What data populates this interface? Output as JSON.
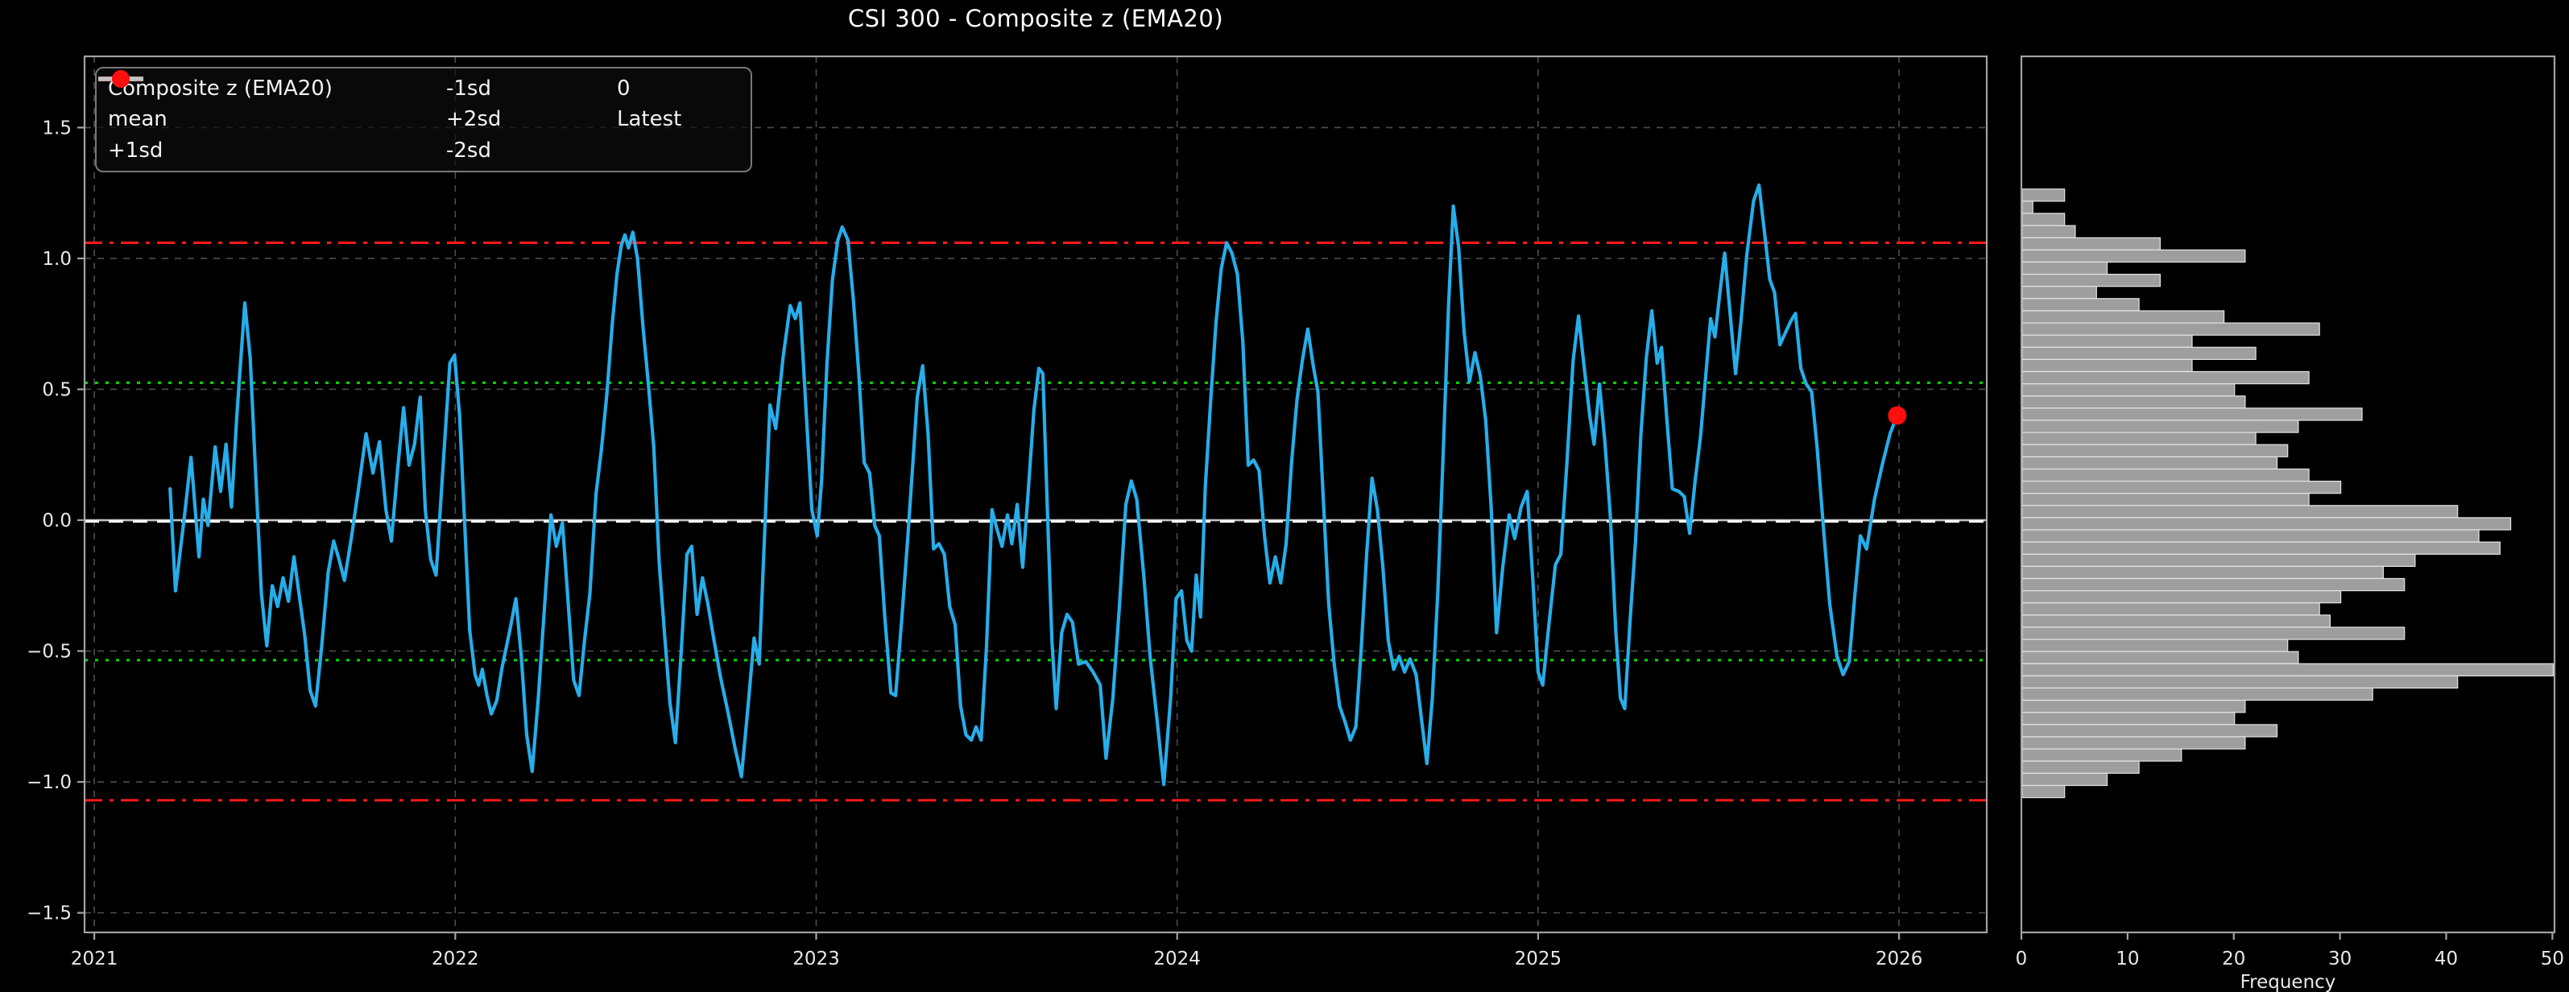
{
  "title": "CSI 300 - Composite z (EMA20)",
  "colors": {
    "background": "#000000",
    "series_line": "#27ADEA",
    "mean_line": "#ffffff",
    "sd1_line": "#00DD00",
    "sd2_line": "#FF1A1A",
    "zero_line": "#C3C3C3",
    "latest_dot": "#FF0E0E",
    "grid": "#4d4d4d",
    "spine": "#A3A3A3",
    "tick_text": "#E8E8E8",
    "hist_fill": "#9E9E9E",
    "hist_edge": "#E4E4E4"
  },
  "legend": {
    "entries": [
      {
        "label": "Composite z (EMA20)",
        "style": "solid",
        "color": "#27ADEA",
        "glyph": "line"
      },
      {
        "label": "mean",
        "style": "dashed",
        "color": "#ffffff",
        "glyph": "line"
      },
      {
        "label": "+1sd",
        "style": "dotted",
        "color": "#00DD00",
        "glyph": "line"
      },
      {
        "label": "-1sd",
        "style": "dotted",
        "color": "#00DD00",
        "glyph": "line"
      },
      {
        "label": "+2sd",
        "style": "dashdot",
        "color": "#FF1A1A",
        "glyph": "line"
      },
      {
        "label": "-2sd",
        "style": "dashdot",
        "color": "#FF1A1A",
        "glyph": "line"
      },
      {
        "label": "0",
        "style": "solid",
        "color": "#C3C3C3",
        "glyph": "line"
      },
      {
        "label": "Latest",
        "style": "solid",
        "color": "#FF0E0E",
        "glyph": "dot"
      }
    ]
  },
  "chart_data": [
    {
      "type": "line",
      "title": "CSI 300 - Composite z (EMA20)",
      "xlabel": "",
      "ylabel": "",
      "grid": true,
      "xlim": [
        2020.973,
        2026.243
      ],
      "ylim": [
        -1.575,
        1.772
      ],
      "x_tick_values": [
        2021,
        2022,
        2023,
        2024,
        2025,
        2026
      ],
      "x_tick_labels": [
        "2021",
        "2022",
        "2023",
        "2024",
        "2025",
        "2026"
      ],
      "y_tick_values": [
        1.5,
        1.0,
        0.5,
        0.0,
        -0.5,
        -1.0,
        -1.5
      ],
      "y_tick_labels": [
        "1.5",
        "1.0",
        "0.5",
        "0.0",
        "−0.5",
        "−1.0",
        "−1.5"
      ],
      "ref_lines": [
        {
          "name": "+2sd",
          "value": 1.06,
          "color": "#FF1A1A",
          "style": "dashdot"
        },
        {
          "name": "-2sd",
          "value": -1.07,
          "color": "#FF1A1A",
          "style": "dashdot"
        },
        {
          "name": "+1sd",
          "value": 0.525,
          "color": "#00DD00",
          "style": "dotted"
        },
        {
          "name": "-1sd",
          "value": -0.535,
          "color": "#00DD00",
          "style": "dotted"
        },
        {
          "name": "0",
          "value": 0.0,
          "color": "#C3C3C3",
          "style": "solid"
        },
        {
          "name": "mean",
          "value": -0.005,
          "color": "#ffffff",
          "style": "dashed"
        }
      ],
      "latest": {
        "x": 2025.995,
        "y": 0.4,
        "label": "Latest"
      },
      "series": [
        {
          "name": "Composite z (EMA20)",
          "color": "#27ADEA",
          "x": [
            2021.21,
            2021.225,
            2021.25,
            2021.268,
            2021.29,
            2021.302,
            2021.315,
            2021.335,
            2021.35,
            2021.365,
            2021.38,
            2021.395,
            2021.417,
            2021.432,
            2021.447,
            2021.463,
            2021.478,
            2021.493,
            2021.508,
            2021.523,
            2021.538,
            2021.553,
            2021.568,
            2021.583,
            2021.598,
            2021.613,
            2021.63,
            2021.648,
            2021.663,
            2021.678,
            2021.693,
            2021.712,
            2021.733,
            2021.753,
            2021.772,
            2021.79,
            2021.808,
            2021.823,
            2021.84,
            2021.857,
            2021.872,
            2021.887,
            2021.903,
            2021.917,
            2021.932,
            2021.947,
            2021.965,
            2021.985,
            2021.998,
            2022.012,
            2022.025,
            2022.04,
            2022.055,
            2022.065,
            2022.075,
            2022.088,
            2022.1,
            2022.115,
            2022.13,
            2022.15,
            2022.168,
            2022.183,
            2022.198,
            2022.213,
            2022.23,
            2022.25,
            2022.265,
            2022.28,
            2022.297,
            2022.313,
            2022.328,
            2022.343,
            2022.358,
            2022.373,
            2022.39,
            2022.405,
            2022.42,
            2022.435,
            2022.448,
            2022.46,
            2022.47,
            2022.48,
            2022.492,
            2022.505,
            2022.52,
            2022.535,
            2022.55,
            2022.565,
            2022.58,
            2022.595,
            2022.61,
            2022.627,
            2022.642,
            2022.655,
            2022.67,
            2022.685,
            2022.7,
            2022.717,
            2022.735,
            2022.755,
            2022.775,
            2022.793,
            2022.81,
            2022.828,
            2022.842,
            2022.858,
            2022.872,
            2022.888,
            2022.908,
            2022.928,
            2022.942,
            2022.955,
            2022.972,
            2022.988,
            2023.003,
            2023.015,
            2023.03,
            2023.045,
            2023.06,
            2023.072,
            2023.088,
            2023.103,
            2023.118,
            2023.133,
            2023.148,
            2023.162,
            2023.175,
            2023.19,
            2023.207,
            2023.22,
            2023.237,
            2023.253,
            2023.268,
            2023.28,
            2023.295,
            2023.31,
            2023.325,
            2023.34,
            2023.355,
            2023.37,
            2023.385,
            2023.4,
            2023.415,
            2023.43,
            2023.443,
            2023.457,
            2023.472,
            2023.487,
            2023.5,
            2023.515,
            2023.53,
            2023.542,
            2023.557,
            2023.572,
            2023.588,
            2023.603,
            2023.617,
            2023.628,
            2023.642,
            2023.653,
            2023.665,
            2023.68,
            2023.695,
            2023.71,
            2023.727,
            2023.747,
            2023.767,
            2023.787,
            2023.803,
            2023.822,
            2023.84,
            2023.858,
            2023.873,
            2023.888,
            2023.908,
            2023.925,
            2023.945,
            2023.963,
            2023.982,
            2023.997,
            2024.012,
            2024.027,
            2024.04,
            2024.053,
            2024.065,
            2024.078,
            2024.093,
            2024.108,
            2024.122,
            2024.137,
            2024.152,
            2024.167,
            2024.182,
            2024.197,
            2024.212,
            2024.227,
            2024.242,
            2024.257,
            2024.272,
            2024.287,
            2024.302,
            2024.317,
            2024.332,
            2024.347,
            2024.362,
            2024.377,
            2024.39,
            2024.405,
            2024.42,
            2024.435,
            2024.45,
            2024.465,
            2024.48,
            2024.495,
            2024.51,
            2024.525,
            2024.54,
            2024.555,
            2024.57,
            2024.585,
            2024.6,
            2024.615,
            2024.63,
            2024.645,
            2024.662,
            2024.677,
            2024.692,
            2024.707,
            2024.722,
            2024.737,
            2024.752,
            2024.765,
            2024.78,
            2024.795,
            2024.81,
            2024.825,
            2024.84,
            2024.855,
            2024.87,
            2024.885,
            2024.902,
            2024.92,
            2024.935,
            2024.953,
            2024.97,
            2024.985,
            2025.0,
            2025.013,
            2025.03,
            2025.048,
            2025.063,
            2025.08,
            2025.097,
            2025.112,
            2025.128,
            2025.143,
            2025.155,
            2025.17,
            2025.185,
            2025.2,
            2025.215,
            2025.228,
            2025.24,
            2025.255,
            2025.27,
            2025.285,
            2025.3,
            2025.315,
            2025.33,
            2025.342,
            2025.357,
            2025.372,
            2025.39,
            2025.405,
            2025.42,
            2025.435,
            2025.45,
            2025.465,
            2025.478,
            2025.49,
            2025.503,
            2025.517,
            2025.532,
            2025.547,
            2025.562,
            2025.578,
            2025.597,
            2025.612,
            2025.628,
            2025.642,
            2025.655,
            2025.67,
            2025.683,
            2025.7,
            2025.713,
            2025.728,
            2025.743,
            2025.758,
            2025.773,
            2025.79,
            2025.808,
            2025.828,
            2025.845,
            2025.862,
            2025.878,
            2025.893,
            2025.91,
            2025.932,
            2025.955,
            2025.975,
            2025.995
          ],
          "y": [
            0.12,
            -0.27,
            0.02,
            0.24,
            -0.14,
            0.08,
            -0.02,
            0.28,
            0.11,
            0.29,
            0.05,
            0.4,
            0.83,
            0.62,
            0.18,
            -0.28,
            -0.48,
            -0.25,
            -0.33,
            -0.22,
            -0.31,
            -0.14,
            -0.29,
            -0.44,
            -0.65,
            -0.71,
            -0.48,
            -0.2,
            -0.08,
            -0.15,
            -0.23,
            -0.07,
            0.13,
            0.33,
            0.18,
            0.3,
            0.04,
            -0.08,
            0.19,
            0.43,
            0.21,
            0.29,
            0.47,
            0.04,
            -0.15,
            -0.21,
            0.18,
            0.6,
            0.63,
            0.4,
            0.02,
            -0.42,
            -0.59,
            -0.63,
            -0.57,
            -0.67,
            -0.74,
            -0.69,
            -0.56,
            -0.43,
            -0.3,
            -0.52,
            -0.82,
            -0.96,
            -0.68,
            -0.28,
            0.02,
            -0.1,
            -0.01,
            -0.32,
            -0.61,
            -0.67,
            -0.46,
            -0.28,
            0.1,
            0.27,
            0.48,
            0.75,
            0.94,
            1.05,
            1.09,
            1.04,
            1.1,
            1.0,
            0.74,
            0.52,
            0.28,
            -0.16,
            -0.44,
            -0.7,
            -0.85,
            -0.48,
            -0.13,
            -0.1,
            -0.36,
            -0.22,
            -0.32,
            -0.46,
            -0.6,
            -0.73,
            -0.87,
            -0.98,
            -0.73,
            -0.45,
            -0.55,
            -0.02,
            0.44,
            0.35,
            0.62,
            0.82,
            0.77,
            0.83,
            0.42,
            0.04,
            -0.06,
            0.15,
            0.6,
            0.92,
            1.07,
            1.12,
            1.07,
            0.84,
            0.56,
            0.22,
            0.18,
            -0.02,
            -0.06,
            -0.37,
            -0.66,
            -0.67,
            -0.38,
            -0.08,
            0.22,
            0.47,
            0.59,
            0.33,
            -0.11,
            -0.09,
            -0.13,
            -0.33,
            -0.4,
            -0.71,
            -0.82,
            -0.84,
            -0.79,
            -0.84,
            -0.48,
            0.04,
            -0.03,
            -0.1,
            0.02,
            -0.09,
            0.06,
            -0.18,
            0.12,
            0.42,
            0.58,
            0.56,
            -0.02,
            -0.46,
            -0.72,
            -0.43,
            -0.36,
            -0.39,
            -0.55,
            -0.54,
            -0.58,
            -0.63,
            -0.91,
            -0.68,
            -0.33,
            0.06,
            0.15,
            0.08,
            -0.22,
            -0.52,
            -0.77,
            -1.01,
            -0.68,
            -0.3,
            -0.27,
            -0.46,
            -0.5,
            -0.21,
            -0.37,
            0.13,
            0.46,
            0.76,
            0.96,
            1.06,
            1.02,
            0.94,
            0.68,
            0.21,
            0.23,
            0.19,
            -0.06,
            -0.24,
            -0.14,
            -0.24,
            -0.09,
            0.22,
            0.46,
            0.61,
            0.73,
            0.59,
            0.49,
            0.08,
            -0.32,
            -0.55,
            -0.71,
            -0.77,
            -0.84,
            -0.79,
            -0.49,
            -0.13,
            0.16,
            0.04,
            -0.18,
            -0.46,
            -0.57,
            -0.52,
            -0.58,
            -0.53,
            -0.59,
            -0.76,
            -0.93,
            -0.68,
            -0.28,
            0.25,
            0.82,
            1.2,
            1.04,
            0.72,
            0.53,
            0.64,
            0.55,
            0.38,
            0.05,
            -0.43,
            -0.18,
            0.02,
            -0.07,
            0.05,
            0.11,
            -0.22,
            -0.58,
            -0.63,
            -0.4,
            -0.17,
            -0.13,
            0.22,
            0.61,
            0.78,
            0.58,
            0.4,
            0.29,
            0.52,
            0.3,
            0.02,
            -0.42,
            -0.68,
            -0.72,
            -0.38,
            -0.08,
            0.33,
            0.62,
            0.8,
            0.6,
            0.66,
            0.38,
            0.12,
            0.11,
            0.09,
            -0.05,
            0.15,
            0.32,
            0.56,
            0.77,
            0.7,
            0.86,
            1.02,
            0.79,
            0.56,
            0.76,
            1.01,
            1.22,
            1.28,
            1.09,
            0.92,
            0.87,
            0.67,
            0.71,
            0.76,
            0.79,
            0.58,
            0.52,
            0.49,
            0.28,
            -0.02,
            -0.32,
            -0.52,
            -0.59,
            -0.54,
            -0.28,
            -0.06,
            -0.11,
            0.08,
            0.22,
            0.33,
            0.4
          ]
        }
      ]
    },
    {
      "type": "bar",
      "orientation": "horizontal",
      "xlabel": "Frequency",
      "grid": false,
      "xlim": [
        0,
        50.2
      ],
      "x_tick_values": [
        0,
        10,
        20,
        30,
        40,
        50
      ],
      "x_tick_labels": [
        "0",
        "10",
        "20",
        "30",
        "40",
        "50"
      ],
      "bin_top": 1.265,
      "bin_height": 0.0465,
      "values": [
        4,
        1,
        4,
        5,
        13,
        21,
        8,
        13,
        7,
        11,
        19,
        28,
        16,
        22,
        16,
        27,
        20,
        21,
        32,
        26,
        22,
        25,
        24,
        27,
        30,
        27,
        41,
        46,
        43,
        45,
        37,
        34,
        36,
        30,
        28,
        29,
        36,
        25,
        26,
        50,
        41,
        33,
        21,
        20,
        24,
        21,
        15,
        11,
        8,
        4
      ]
    }
  ]
}
